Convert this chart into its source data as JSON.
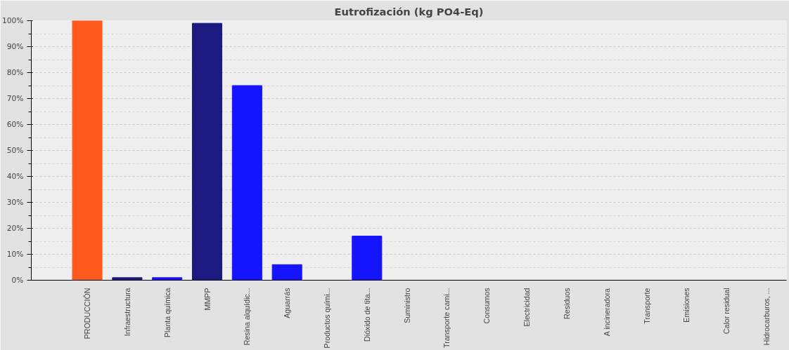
{
  "chart_data": {
    "type": "bar",
    "title": "Eutrofización (kg PO4-Eq)",
    "categories": [
      "PRODUCCIÓN",
      "Infraestructura",
      "Planta química",
      "MMPP",
      "Resina alquídic...",
      "Aguarrás",
      "Productos quími...",
      "Dióxido de tita...",
      "Suministro",
      "Transporte cami...",
      "Consumos",
      "Electricidad",
      "Residuos",
      "A incineradora",
      "Transporte",
      "Emisiones",
      "Calor residual",
      "Hidrocarburos, ..."
    ],
    "values": [
      100,
      1,
      1,
      99,
      75,
      6,
      0,
      17,
      0,
      0,
      0,
      0,
      0,
      0,
      0,
      0,
      0,
      0
    ],
    "colors": [
      "#ff5a1e",
      "#1a1a80",
      "#1414ff",
      "#1a1a80",
      "#1414ff",
      "#1414ff",
      "#1414ff",
      "#1414ff",
      "#1414ff",
      "#1414ff",
      "#1414ff",
      "#1414ff",
      "#1414ff",
      "#1414ff",
      "#1414ff",
      "#1414ff",
      "#1414ff",
      "#1414ff"
    ],
    "ylim": [
      0,
      100
    ],
    "yticks": [
      {
        "value": 0,
        "label": "0%"
      },
      {
        "value": 10,
        "label": "10%"
      },
      {
        "value": 20,
        "label": "20%"
      },
      {
        "value": 30,
        "label": "30%"
      },
      {
        "value": 40,
        "label": "40%"
      },
      {
        "value": 50,
        "label": "50%"
      },
      {
        "value": 60,
        "label": "60%"
      },
      {
        "value": 70,
        "label": "70%"
      },
      {
        "value": 80,
        "label": "80%"
      },
      {
        "value": 90,
        "label": "90%"
      },
      {
        "value": 100,
        "label": "100%"
      }
    ],
    "grid": "y"
  }
}
